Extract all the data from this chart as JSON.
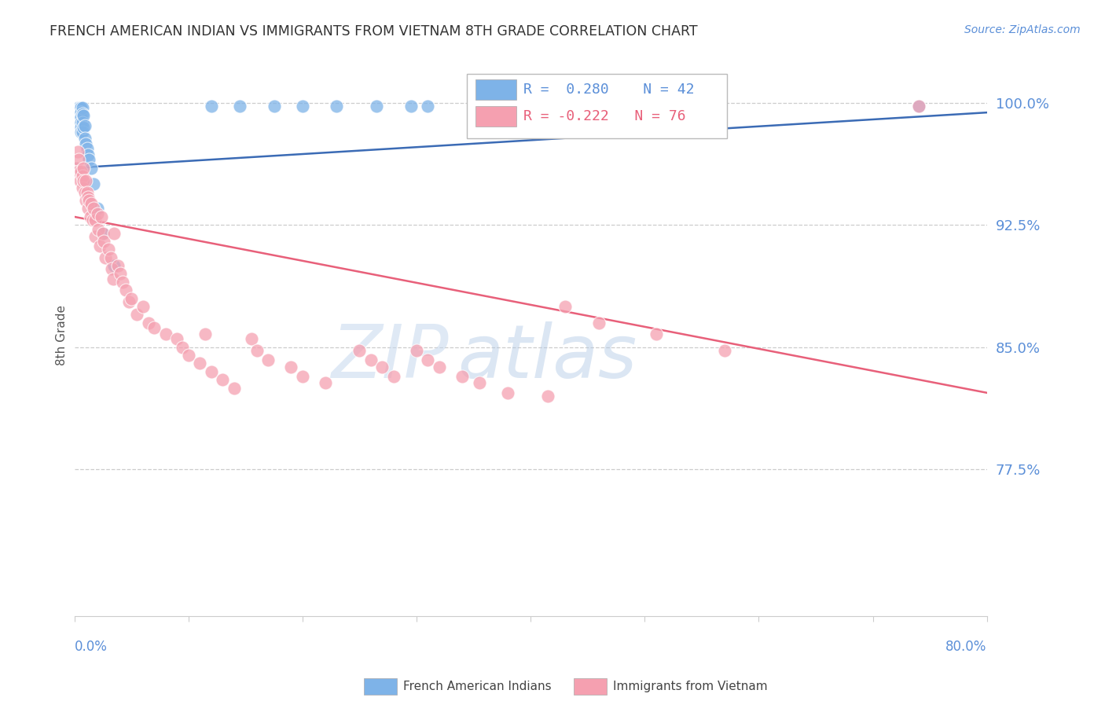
{
  "title": "FRENCH AMERICAN INDIAN VS IMMIGRANTS FROM VIETNAM 8TH GRADE CORRELATION CHART",
  "source": "Source: ZipAtlas.com",
  "ylabel": "8th Grade",
  "ytick_labels": [
    "100.0%",
    "92.5%",
    "85.0%",
    "77.5%"
  ],
  "ytick_values": [
    1.0,
    0.925,
    0.85,
    0.775
  ],
  "ylim": [
    0.685,
    1.03
  ],
  "xlim": [
    0.0,
    0.8
  ],
  "legend_blue_r": "R =  0.280",
  "legend_blue_n": "N = 42",
  "legend_pink_r": "R = -0.222",
  "legend_pink_n": "N = 76",
  "blue_x": [
    0.002,
    0.003,
    0.003,
    0.004,
    0.004,
    0.005,
    0.005,
    0.005,
    0.005,
    0.006,
    0.006,
    0.006,
    0.006,
    0.006,
    0.006,
    0.007,
    0.007,
    0.007,
    0.007,
    0.008,
    0.008,
    0.009,
    0.009,
    0.01,
    0.011,
    0.012,
    0.013,
    0.015,
    0.017,
    0.02,
    0.025,
    0.035,
    0.12,
    0.145,
    0.175,
    0.2,
    0.23,
    0.265,
    0.295,
    0.31,
    0.45,
    0.74
  ],
  "blue_y": [
    0.96,
    0.997,
    0.99,
    0.997,
    0.992,
    0.997,
    0.994,
    0.991,
    0.988,
    0.997,
    0.994,
    0.991,
    0.988,
    0.985,
    0.982,
    0.997,
    0.993,
    0.988,
    0.982,
    0.992,
    0.985,
    0.986,
    0.978,
    0.975,
    0.972,
    0.968,
    0.965,
    0.96,
    0.95,
    0.935,
    0.92,
    0.9,
    0.998,
    0.998,
    0.998,
    0.998,
    0.998,
    0.998,
    0.998,
    0.998,
    0.985,
    0.998
  ],
  "pink_x": [
    0.002,
    0.003,
    0.004,
    0.004,
    0.005,
    0.006,
    0.007,
    0.007,
    0.008,
    0.008,
    0.009,
    0.01,
    0.01,
    0.011,
    0.012,
    0.012,
    0.013,
    0.014,
    0.015,
    0.016,
    0.017,
    0.018,
    0.018,
    0.02,
    0.021,
    0.022,
    0.024,
    0.025,
    0.026,
    0.027,
    0.03,
    0.032,
    0.033,
    0.034,
    0.035,
    0.038,
    0.04,
    0.042,
    0.045,
    0.048,
    0.05,
    0.055,
    0.06,
    0.065,
    0.07,
    0.08,
    0.09,
    0.095,
    0.1,
    0.11,
    0.115,
    0.12,
    0.13,
    0.14,
    0.155,
    0.16,
    0.17,
    0.19,
    0.2,
    0.22,
    0.25,
    0.26,
    0.27,
    0.28,
    0.3,
    0.31,
    0.32,
    0.34,
    0.355,
    0.38,
    0.415,
    0.43,
    0.46,
    0.51,
    0.57,
    0.74
  ],
  "pink_y": [
    0.96,
    0.97,
    0.965,
    0.958,
    0.952,
    0.958,
    0.955,
    0.948,
    0.96,
    0.952,
    0.945,
    0.952,
    0.94,
    0.945,
    0.942,
    0.935,
    0.94,
    0.93,
    0.938,
    0.928,
    0.935,
    0.928,
    0.918,
    0.932,
    0.922,
    0.912,
    0.93,
    0.92,
    0.915,
    0.905,
    0.91,
    0.905,
    0.898,
    0.892,
    0.92,
    0.9,
    0.895,
    0.89,
    0.885,
    0.878,
    0.88,
    0.87,
    0.875,
    0.865,
    0.862,
    0.858,
    0.855,
    0.85,
    0.845,
    0.84,
    0.858,
    0.835,
    0.83,
    0.825,
    0.855,
    0.848,
    0.842,
    0.838,
    0.832,
    0.828,
    0.848,
    0.842,
    0.838,
    0.832,
    0.848,
    0.842,
    0.838,
    0.832,
    0.828,
    0.822,
    0.82,
    0.875,
    0.865,
    0.858,
    0.848,
    0.998
  ],
  "blue_line_x": [
    0.0,
    0.8
  ],
  "blue_line_y": [
    0.96,
    0.994
  ],
  "pink_line_x": [
    0.0,
    0.8
  ],
  "pink_line_y": [
    0.93,
    0.822
  ],
  "blue_color": "#7EB3E8",
  "pink_color": "#F5A0B0",
  "blue_line_color": "#3B6BB5",
  "pink_line_color": "#E8607A",
  "grid_color": "#CCCCCC",
  "axis_label_color": "#5B8FD8",
  "title_color": "#333333"
}
